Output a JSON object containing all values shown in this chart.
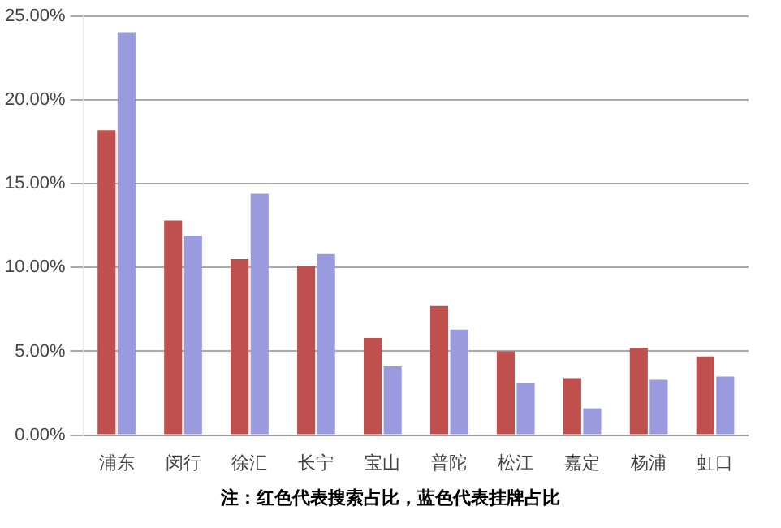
{
  "chart_data": {
    "type": "bar",
    "categories": [
      "浦东",
      "闵行",
      "徐汇",
      "长宁",
      "宝山",
      "普陀",
      "松江",
      "嘉定",
      "杨浦",
      "虹口"
    ],
    "series": [
      {
        "color": "#c0504d",
        "values": [
          18.2,
          12.8,
          10.5,
          10.1,
          5.8,
          7.7,
          5.0,
          3.4,
          5.2,
          4.7
        ]
      },
      {
        "color": "#9a9ade",
        "values": [
          24.0,
          11.9,
          14.4,
          10.8,
          4.1,
          6.3,
          3.1,
          1.6,
          3.3,
          3.5
        ]
      }
    ],
    "ylim": [
      0,
      25
    ],
    "yticks": [
      {
        "value": 0,
        "label": "0.00%"
      },
      {
        "value": 5,
        "label": "5.00%"
      },
      {
        "value": 10,
        "label": "10.00%"
      },
      {
        "value": 15,
        "label": "15.00%"
      },
      {
        "value": 20,
        "label": "20.00%"
      },
      {
        "value": 25,
        "label": "25.00%"
      }
    ],
    "grid": "y",
    "legend": false,
    "annotations": [
      "注：红色代表搜索占比，蓝色代表挂牌占比"
    ]
  }
}
